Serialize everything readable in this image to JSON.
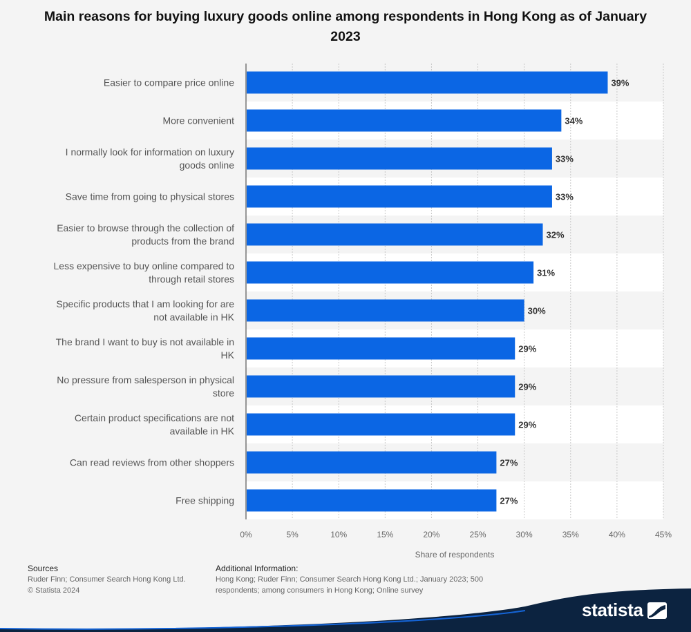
{
  "chart_data": {
    "type": "bar",
    "orientation": "horizontal",
    "title": "Main reasons for buying luxury goods online among respondents in Hong Kong as of January 2023",
    "xlabel": "Share of respondents",
    "ylabel": "",
    "xlim": [
      0,
      45
    ],
    "ticks": [
      "0%",
      "5%",
      "10%",
      "15%",
      "20%",
      "25%",
      "30%",
      "35%",
      "40%",
      "45%"
    ],
    "grid": true,
    "bar_color": "#0b66e4",
    "categories": [
      [
        "Easier to compare price online"
      ],
      [
        "More convenient"
      ],
      [
        "I normally look for information on luxury",
        "goods online"
      ],
      [
        "Save time from going to physical stores"
      ],
      [
        "Easier to browse through the collection of",
        "products from the brand"
      ],
      [
        "Less expensive to buy online compared to",
        "through retail stores"
      ],
      [
        "Specific products that I am looking for are",
        "not available in HK"
      ],
      [
        "The brand I want to buy is not available in",
        "HK"
      ],
      [
        "No pressure from salesperson in physical",
        "store"
      ],
      [
        "Certain product specifications are not",
        "available in HK"
      ],
      [
        "Can read reviews from other shoppers"
      ],
      [
        "Free shipping"
      ]
    ],
    "values": [
      39,
      34,
      33,
      33,
      32,
      31,
      30,
      29,
      29,
      29,
      27,
      27
    ],
    "value_labels": [
      "39%",
      "34%",
      "33%",
      "33%",
      "32%",
      "31%",
      "30%",
      "29%",
      "29%",
      "29%",
      "27%",
      "27%"
    ]
  },
  "footer": {
    "sources_heading": "Sources",
    "sources_text": "Ruder Finn; Consumer Search Hong Kong Ltd.",
    "copyright": "© Statista 2024",
    "additional_heading": "Additional Information:",
    "additional_text": "Hong Kong; Ruder Finn; Consumer Search Hong Kong Ltd.; January 2023; 500 respondents; among consumers in Hong Kong; Online survey"
  },
  "brand": {
    "name": "statista",
    "color": "#0c2340"
  }
}
